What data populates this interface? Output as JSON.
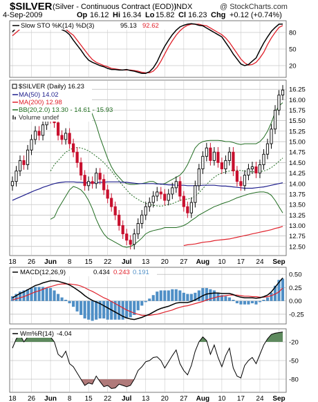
{
  "chart_data": {
    "type": "candlestick",
    "symbol": "$SILVER",
    "name": "(Silver - Continuous Contract (EOD))",
    "exchange": "INDX",
    "date": "4-Sep-2009",
    "ohlc": {
      "o_label": "Op",
      "o": "16.12",
      "h_label": "Hi",
      "h": "16.34",
      "l_label": "Lo",
      "l": "15.82",
      "c_label": "Cl",
      "c": "16.23",
      "chg_label": "Chg",
      "chg": "+0.12 (+0.74%)"
    },
    "watermark": "@ StockCharts.com",
    "x_labels": [
      "18",
      "26",
      "Jun",
      "8",
      "15",
      "22",
      "Jul",
      "13",
      "20",
      "27",
      "Aug",
      "10",
      "17",
      "24",
      "Sep"
    ],
    "x_label_bars": [
      0,
      5,
      10,
      15,
      20,
      25,
      30,
      35,
      40,
      45,
      50,
      55,
      60,
      65,
      70
    ],
    "stoch": {
      "legend": "Slow STO %K(14) %D(3)",
      "k_value": "95.13",
      "d_value": "92.62",
      "ylim": [
        0,
        100
      ],
      "ticks": [
        "80",
        "50",
        "20"
      ],
      "tick_values": [
        80,
        50,
        20
      ],
      "k_color": "#000000",
      "d_color": "#e0202a",
      "k": [
        81,
        88,
        93,
        95,
        96,
        95,
        93,
        94,
        95,
        95,
        95,
        93,
        90,
        85,
        82,
        76,
        66,
        57,
        48,
        38,
        30,
        26,
        23,
        20,
        18,
        15,
        13,
        13,
        12,
        12,
        13,
        11,
        10,
        8,
        6,
        6,
        9,
        16,
        27,
        42,
        55,
        66,
        76,
        84,
        90,
        93,
        95,
        96,
        95,
        93,
        92,
        88,
        84,
        80,
        76,
        72,
        62,
        52,
        41,
        32,
        23,
        20,
        22,
        28,
        34,
        48,
        61,
        72,
        82,
        89,
        95,
        95.13
      ],
      "d": [
        74,
        80,
        86,
        91,
        93,
        95,
        95,
        94,
        94,
        95,
        95,
        94,
        93,
        90,
        86,
        80,
        75,
        66,
        57,
        48,
        39,
        31,
        26,
        23,
        20,
        18,
        15,
        14,
        13,
        12,
        12,
        12,
        11,
        10,
        8,
        7,
        7,
        10,
        17,
        28,
        41,
        54,
        65,
        75,
        83,
        89,
        93,
        95,
        95,
        95,
        93,
        92,
        88,
        84,
        80,
        76,
        70,
        62,
        52,
        42,
        32,
        25,
        21,
        22,
        26,
        34,
        44,
        58,
        70,
        80,
        89,
        92.62
      ]
    },
    "price": {
      "legend": "$SILVER (Daily) 16.23",
      "ma50_label": "MA(50) 14.02",
      "ma200_label": "MA(200) 12.98",
      "bb_label": "BB(20,2.0) 13.30 - 14.61 - 15.93",
      "volume_label": "Volume undef",
      "ylim": [
        12.3,
        16.45
      ],
      "ticks": [
        "16.25",
        "16.00",
        "15.75",
        "15.50",
        "15.25",
        "15.00",
        "14.75",
        "14.50",
        "14.25",
        "14.00",
        "13.75",
        "13.50",
        "13.25",
        "13.00",
        "12.75",
        "12.50"
      ],
      "tick_values": [
        16.25,
        16.0,
        15.75,
        15.5,
        15.25,
        15.0,
        14.75,
        14.5,
        14.25,
        14.0,
        13.75,
        13.5,
        13.25,
        13.0,
        12.75,
        12.5
      ],
      "up_color": "#000000",
      "down_color": "#c8102e",
      "ma50_color": "#1e1e8c",
      "ma200_color": "#e0202a",
      "bb_color": "#1f6b1f",
      "close": [
        14.05,
        14.3,
        14.55,
        14.45,
        14.8,
        15.05,
        15.25,
        15.15,
        15.4,
        15.6,
        15.55,
        15.45,
        15.15,
        15.05,
        15.2,
        14.95,
        14.75,
        14.5,
        14.2,
        13.95,
        14.05,
        14.0,
        14.25,
        14.1,
        13.85,
        13.65,
        13.45,
        13.25,
        13.0,
        12.8,
        12.65,
        12.55,
        12.8,
        13.05,
        13.25,
        13.45,
        13.55,
        13.7,
        13.8,
        13.75,
        13.6,
        13.75,
        13.9,
        14.05,
        13.7,
        13.45,
        13.3,
        13.55,
        13.95,
        14.35,
        14.65,
        14.85,
        14.55,
        14.75,
        14.5,
        14.35,
        14.55,
        14.75,
        14.3,
        14.05,
        13.95,
        14.2,
        14.35,
        14.4,
        14.25,
        14.45,
        14.7,
        14.95,
        15.3,
        15.75,
        16.11,
        16.23
      ],
      "ma50": [
        13.6,
        13.64,
        13.68,
        13.72,
        13.76,
        13.8,
        13.84,
        13.87,
        13.91,
        13.94,
        13.97,
        14.0,
        14.02,
        14.03,
        14.04,
        14.04,
        14.04,
        14.03,
        14.03,
        14.02,
        14.02,
        14.02,
        14.02,
        14.03,
        14.03,
        14.04,
        14.04,
        14.04,
        14.04,
        14.03,
        14.03,
        14.02,
        14.01,
        14.0,
        14.0,
        14.0,
        14.0,
        14.0,
        13.99,
        13.99,
        13.98,
        13.97,
        13.97,
        13.96,
        13.96,
        13.96,
        13.95,
        13.95,
        13.95,
        13.95,
        13.96,
        13.96,
        13.96,
        13.96,
        13.95,
        13.94,
        13.94,
        13.93,
        13.92,
        13.91,
        13.9,
        13.89,
        13.89,
        13.89,
        13.9,
        13.91,
        13.92,
        13.94,
        13.96,
        13.98,
        14.0,
        14.02
      ],
      "ma200": [
        null,
        null,
        null,
        null,
        null,
        null,
        null,
        null,
        null,
        null,
        null,
        null,
        null,
        null,
        null,
        null,
        null,
        null,
        null,
        null,
        null,
        null,
        null,
        null,
        null,
        null,
        null,
        null,
        null,
        null,
        null,
        null,
        null,
        null,
        null,
        null,
        null,
        null,
        null,
        null,
        null,
        null,
        null,
        null,
        null,
        12.52,
        12.54,
        12.55,
        12.56,
        12.58,
        12.6,
        12.61,
        12.62,
        12.64,
        12.65,
        12.66,
        12.67,
        12.68,
        12.7,
        12.72,
        12.74,
        12.76,
        12.78,
        12.8,
        12.82,
        12.84,
        12.86,
        12.88,
        12.9,
        12.93,
        12.95,
        12.98
      ],
      "bb_upper": [
        null,
        null,
        null,
        null,
        null,
        null,
        null,
        null,
        null,
        null,
        15.65,
        15.85,
        16.0,
        16.15,
        16.2,
        16.22,
        16.2,
        16.15,
        16.08,
        16.0,
        15.85,
        15.65,
        15.4,
        15.1,
        14.85,
        14.6,
        14.4,
        14.25,
        14.15,
        14.05,
        14.0,
        13.98,
        13.98,
        13.99,
        14.0,
        14.02,
        14.05,
        14.05,
        14.0,
        13.98,
        14.0,
        14.05,
        14.1,
        14.15,
        14.2,
        14.3,
        14.45,
        14.65,
        14.85,
        14.95,
        15.0,
        15.02,
        15.03,
        15.03,
        15.03,
        15.02,
        15.0,
        15.0,
        14.98,
        14.95,
        14.93,
        14.95,
        14.95,
        14.95,
        14.95,
        15.0,
        15.1,
        15.25,
        15.45,
        15.7,
        15.85,
        15.93
      ],
      "bb_mid": [
        null,
        null,
        null,
        null,
        null,
        null,
        null,
        null,
        null,
        null,
        14.3,
        14.45,
        14.55,
        14.65,
        14.75,
        14.8,
        14.85,
        14.86,
        14.85,
        14.82,
        14.78,
        14.72,
        14.65,
        14.58,
        14.5,
        14.4,
        14.3,
        14.18,
        14.06,
        13.95,
        13.85,
        13.75,
        13.68,
        13.62,
        13.57,
        13.53,
        13.5,
        13.48,
        13.47,
        13.46,
        13.48,
        13.5,
        13.52,
        13.56,
        13.6,
        13.62,
        13.63,
        13.65,
        13.7,
        13.78,
        13.88,
        13.98,
        14.07,
        14.15,
        14.21,
        14.25,
        14.28,
        14.3,
        14.32,
        14.32,
        14.31,
        14.3,
        14.29,
        14.28,
        14.28,
        14.29,
        14.3,
        14.33,
        14.38,
        14.45,
        14.53,
        14.61
      ],
      "bb_lower": [
        null,
        null,
        null,
        null,
        null,
        null,
        null,
        null,
        null,
        null,
        13.15,
        13.2,
        13.4,
        13.55,
        13.7,
        13.85,
        13.93,
        13.9,
        13.85,
        13.75,
        13.6,
        13.4,
        13.15,
        12.95,
        12.8,
        12.7,
        12.65,
        12.6,
        12.55,
        12.5,
        12.48,
        12.5,
        12.55,
        12.62,
        12.7,
        12.8,
        12.85,
        12.88,
        12.9,
        12.92,
        12.95,
        12.95,
        12.95,
        12.95,
        12.97,
        13.0,
        13.05,
        13.12,
        13.18,
        13.25,
        13.3,
        13.35,
        13.4,
        13.45,
        13.48,
        13.52,
        13.55,
        13.58,
        13.62,
        13.66,
        13.69,
        13.72,
        13.75,
        13.77,
        13.79,
        13.8,
        13.8,
        13.78,
        13.72,
        13.6,
        13.45,
        13.3
      ]
    },
    "macd": {
      "legend": "MACD(12,26,9)",
      "macd_value": "0.434",
      "signal_value": "0.243",
      "hist_value": "0.191",
      "ylim": [
        -0.42,
        0.62
      ],
      "ticks": [
        "0.50",
        "0.25",
        "0.00",
        "-0.25"
      ],
      "tick_values": [
        0.5,
        0.25,
        0.0,
        -0.25
      ],
      "macd_color": "#000000",
      "signal_color": "#e0202a",
      "hist_color": "#4f8fc6",
      "macd": [
        0.06,
        0.1,
        0.14,
        0.17,
        0.21,
        0.25,
        0.29,
        0.31,
        0.34,
        0.36,
        0.38,
        0.38,
        0.37,
        0.35,
        0.33,
        0.3,
        0.26,
        0.21,
        0.16,
        0.1,
        0.05,
        0.01,
        -0.02,
        -0.05,
        -0.09,
        -0.13,
        -0.17,
        -0.21,
        -0.25,
        -0.29,
        -0.32,
        -0.34,
        -0.35,
        -0.33,
        -0.31,
        -0.28,
        -0.25,
        -0.21,
        -0.17,
        -0.14,
        -0.12,
        -0.1,
        -0.07,
        -0.04,
        -0.03,
        -0.03,
        -0.03,
        -0.01,
        0.02,
        0.06,
        0.1,
        0.13,
        0.14,
        0.15,
        0.15,
        0.14,
        0.14,
        0.14,
        0.12,
        0.09,
        0.07,
        0.06,
        0.06,
        0.06,
        0.05,
        0.06,
        0.08,
        0.11,
        0.17,
        0.26,
        0.35,
        0.434
      ],
      "signal": [
        0.02,
        0.04,
        0.06,
        0.08,
        0.11,
        0.14,
        0.17,
        0.19,
        0.22,
        0.25,
        0.27,
        0.29,
        0.31,
        0.32,
        0.32,
        0.32,
        0.31,
        0.3,
        0.28,
        0.25,
        0.21,
        0.18,
        0.14,
        0.1,
        0.06,
        0.03,
        -0.01,
        -0.05,
        -0.09,
        -0.13,
        -0.17,
        -0.2,
        -0.23,
        -0.25,
        -0.27,
        -0.27,
        -0.27,
        -0.26,
        -0.25,
        -0.23,
        -0.21,
        -0.19,
        -0.17,
        -0.14,
        -0.12,
        -0.1,
        -0.09,
        -0.07,
        -0.05,
        -0.03,
        -0.01,
        0.02,
        0.04,
        0.06,
        0.08,
        0.09,
        0.1,
        0.11,
        0.11,
        0.11,
        0.1,
        0.09,
        0.09,
        0.08,
        0.08,
        0.07,
        0.07,
        0.08,
        0.1,
        0.13,
        0.17,
        0.243
      ]
    },
    "wmr": {
      "legend": "Wm%R(14)",
      "value": "-4.04",
      "ylim": [
        -100,
        0
      ],
      "ticks": [
        "-20",
        "-50",
        "-80"
      ],
      "tick_values": [
        -20,
        -50,
        -80
      ],
      "line_color": "#000000",
      "high_fill": "#5e8a5e",
      "low_fill": "#b07a7a",
      "values": [
        -30,
        -15,
        -8,
        -20,
        -12,
        -5,
        -6,
        -10,
        -3,
        -8,
        -12,
        -20,
        -40,
        -45,
        -35,
        -55,
        -60,
        -70,
        -80,
        -90,
        -86,
        -88,
        -75,
        -84,
        -92,
        -90,
        -95,
        -94,
        -88,
        -90,
        -92,
        -90,
        -80,
        -66,
        -60,
        -52,
        -50,
        -45,
        -44,
        -50,
        -62,
        -52,
        -42,
        -33,
        -55,
        -66,
        -73,
        -58,
        -35,
        -20,
        -12,
        -18,
        -40,
        -25,
        -45,
        -60,
        -42,
        -30,
        -62,
        -75,
        -78,
        -58,
        -50,
        -45,
        -55,
        -40,
        -25,
        -15,
        -8,
        -6,
        -5,
        -4.04
      ]
    }
  }
}
